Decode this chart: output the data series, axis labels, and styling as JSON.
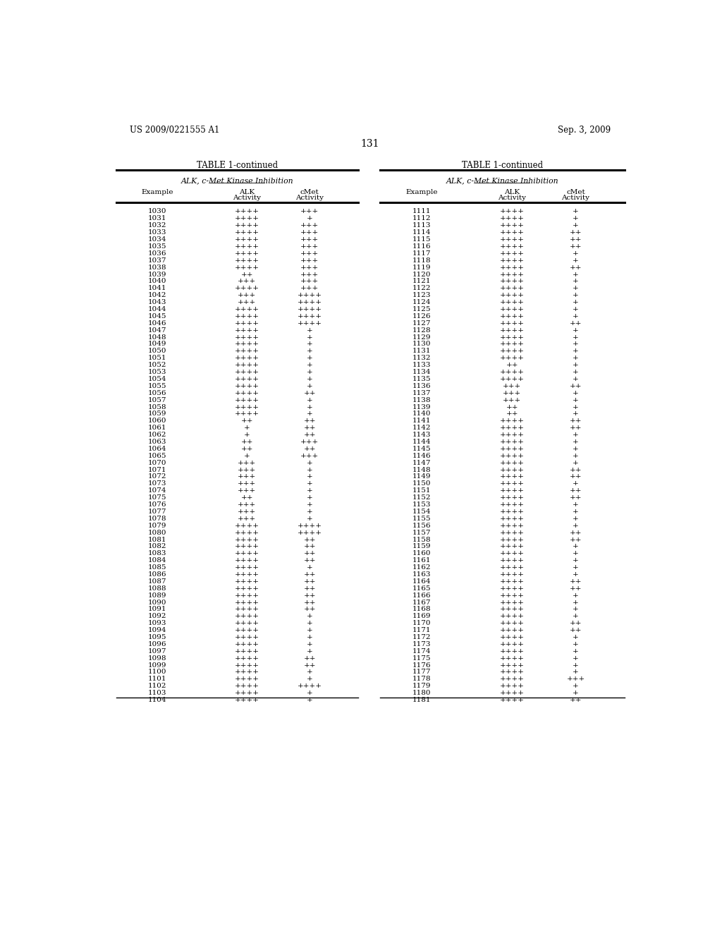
{
  "header_left": "US 2009/0221555 A1",
  "header_right": "Sep. 3, 2009",
  "page_number": "131",
  "table_title": "TABLE 1-continued",
  "subtitle": "ALK, c-Met Kinase Inhibition",
  "col_header_example": "Example",
  "col_header_alk1": "ALK",
  "col_header_alk2": "Activity",
  "col_header_cmet1": "cMet",
  "col_header_cmet2": "Activity",
  "left_data": [
    [
      "1030",
      "++++",
      "+++"
    ],
    [
      "1031",
      "++++",
      "+"
    ],
    [
      "1032",
      "++++",
      "+++"
    ],
    [
      "1033",
      "++++",
      "+++"
    ],
    [
      "1034",
      "++++",
      "+++"
    ],
    [
      "1035",
      "++++",
      "+++"
    ],
    [
      "1036",
      "++++",
      "+++"
    ],
    [
      "1037",
      "++++",
      "+++"
    ],
    [
      "1038",
      "++++",
      "+++"
    ],
    [
      "1039",
      "++",
      "+++"
    ],
    [
      "1040",
      "+++",
      "+++"
    ],
    [
      "1041",
      "++++",
      "+++"
    ],
    [
      "1042",
      "+++",
      "++++"
    ],
    [
      "1043",
      "+++",
      "++++"
    ],
    [
      "1044",
      "++++",
      "++++"
    ],
    [
      "1045",
      "++++",
      "++++"
    ],
    [
      "1046",
      "++++",
      "++++"
    ],
    [
      "1047",
      "++++",
      "+"
    ],
    [
      "1048",
      "++++",
      "+"
    ],
    [
      "1049",
      "++++",
      "+"
    ],
    [
      "1050",
      "++++",
      "+"
    ],
    [
      "1051",
      "++++",
      "+"
    ],
    [
      "1052",
      "++++",
      "+"
    ],
    [
      "1053",
      "++++",
      "+"
    ],
    [
      "1054",
      "++++",
      "+"
    ],
    [
      "1055",
      "++++",
      "+"
    ],
    [
      "1056",
      "++++",
      "++"
    ],
    [
      "1057",
      "++++",
      "+"
    ],
    [
      "1058",
      "++++",
      "+"
    ],
    [
      "1059",
      "++++",
      "+"
    ],
    [
      "1060",
      "++",
      "++"
    ],
    [
      "1061",
      "+",
      "++"
    ],
    [
      "1062",
      "+",
      "++"
    ],
    [
      "1063",
      "++",
      "+++"
    ],
    [
      "1064",
      "++",
      "++"
    ],
    [
      "1065",
      "+",
      "+++"
    ],
    [
      "1070",
      "+++",
      "+"
    ],
    [
      "1071",
      "+++",
      "+"
    ],
    [
      "1072",
      "+++",
      "+"
    ],
    [
      "1073",
      "+++",
      "+"
    ],
    [
      "1074",
      "+++",
      "+"
    ],
    [
      "1075",
      "++",
      "+"
    ],
    [
      "1076",
      "+++",
      "+"
    ],
    [
      "1077",
      "+++",
      "+"
    ],
    [
      "1078",
      "+++",
      "+"
    ],
    [
      "1079",
      "++++",
      "++++"
    ],
    [
      "1080",
      "++++",
      "++++"
    ],
    [
      "1081",
      "++++",
      "++"
    ],
    [
      "1082",
      "++++",
      "++"
    ],
    [
      "1083",
      "++++",
      "++"
    ],
    [
      "1084",
      "++++",
      "++"
    ],
    [
      "1085",
      "++++",
      "+"
    ],
    [
      "1086",
      "++++",
      "++"
    ],
    [
      "1087",
      "++++",
      "++"
    ],
    [
      "1088",
      "++++",
      "++"
    ],
    [
      "1089",
      "++++",
      "++"
    ],
    [
      "1090",
      "++++",
      "++"
    ],
    [
      "1091",
      "++++",
      "++"
    ],
    [
      "1092",
      "++++",
      "+"
    ],
    [
      "1093",
      "++++",
      "+"
    ],
    [
      "1094",
      "++++",
      "+"
    ],
    [
      "1095",
      "++++",
      "+"
    ],
    [
      "1096",
      "++++",
      "+"
    ],
    [
      "1097",
      "++++",
      "+"
    ],
    [
      "1098",
      "++++",
      "++"
    ],
    [
      "1099",
      "++++",
      "++"
    ],
    [
      "1100",
      "++++",
      "+"
    ],
    [
      "1101",
      "++++",
      "+"
    ],
    [
      "1102",
      "++++",
      "++++"
    ],
    [
      "1103",
      "++++",
      "+"
    ],
    [
      "1104",
      "++++",
      "+"
    ]
  ],
  "right_data": [
    [
      "1111",
      "++++",
      "+"
    ],
    [
      "1112",
      "++++",
      "+"
    ],
    [
      "1113",
      "++++",
      "+"
    ],
    [
      "1114",
      "++++",
      "++"
    ],
    [
      "1115",
      "++++",
      "++"
    ],
    [
      "1116",
      "++++",
      "++"
    ],
    [
      "1117",
      "++++",
      "+"
    ],
    [
      "1118",
      "++++",
      "+"
    ],
    [
      "1119",
      "++++",
      "++"
    ],
    [
      "1120",
      "++++",
      "+"
    ],
    [
      "1121",
      "++++",
      "+"
    ],
    [
      "1122",
      "++++",
      "+"
    ],
    [
      "1123",
      "++++",
      "+"
    ],
    [
      "1124",
      "++++",
      "+"
    ],
    [
      "1125",
      "++++",
      "+"
    ],
    [
      "1126",
      "++++",
      "+"
    ],
    [
      "1127",
      "++++",
      "++"
    ],
    [
      "1128",
      "++++",
      "+"
    ],
    [
      "1129",
      "++++",
      "+"
    ],
    [
      "1130",
      "++++",
      "+"
    ],
    [
      "1131",
      "++++",
      "+"
    ],
    [
      "1132",
      "++++",
      "+"
    ],
    [
      "1133",
      "++",
      "+"
    ],
    [
      "1134",
      "++++",
      "+"
    ],
    [
      "1135",
      "++++",
      "+"
    ],
    [
      "1136",
      "+++",
      "++"
    ],
    [
      "1137",
      "+++",
      "+"
    ],
    [
      "1138",
      "+++",
      "+"
    ],
    [
      "1139",
      "++",
      "+"
    ],
    [
      "1140",
      "++",
      "+"
    ],
    [
      "1141",
      "++++",
      "++"
    ],
    [
      "1142",
      "++++",
      "++"
    ],
    [
      "1143",
      "++++",
      "+"
    ],
    [
      "1144",
      "++++",
      "+"
    ],
    [
      "1145",
      "++++",
      "+"
    ],
    [
      "1146",
      "++++",
      "+"
    ],
    [
      "1147",
      "++++",
      "+"
    ],
    [
      "1148",
      "++++",
      "++"
    ],
    [
      "1149",
      "++++",
      "++"
    ],
    [
      "1150",
      "++++",
      "+"
    ],
    [
      "1151",
      "++++",
      "++"
    ],
    [
      "1152",
      "++++",
      "++"
    ],
    [
      "1153",
      "++++",
      "+"
    ],
    [
      "1154",
      "++++",
      "+"
    ],
    [
      "1155",
      "++++",
      "+"
    ],
    [
      "1156",
      "++++",
      "+"
    ],
    [
      "1157",
      "++++",
      "++"
    ],
    [
      "1158",
      "++++",
      "++"
    ],
    [
      "1159",
      "++++",
      "+"
    ],
    [
      "1160",
      "++++",
      "+"
    ],
    [
      "1161",
      "++++",
      "+"
    ],
    [
      "1162",
      "++++",
      "+"
    ],
    [
      "1163",
      "++++",
      "+"
    ],
    [
      "1164",
      "++++",
      "++"
    ],
    [
      "1165",
      "++++",
      "++"
    ],
    [
      "1166",
      "++++",
      "+"
    ],
    [
      "1167",
      "++++",
      "+"
    ],
    [
      "1168",
      "++++",
      "+"
    ],
    [
      "1169",
      "++++",
      "+"
    ],
    [
      "1170",
      "++++",
      "++"
    ],
    [
      "1171",
      "++++",
      "++"
    ],
    [
      "1172",
      "++++",
      "+"
    ],
    [
      "1173",
      "++++",
      "+"
    ],
    [
      "1174",
      "++++",
      "+"
    ],
    [
      "1175",
      "++++",
      "+"
    ],
    [
      "1176",
      "++++",
      "+"
    ],
    [
      "1177",
      "++++",
      "+"
    ],
    [
      "1178",
      "++++",
      "+++"
    ],
    [
      "1179",
      "++++",
      "+"
    ],
    [
      "1180",
      "++++",
      "+"
    ],
    [
      "1181",
      "++++",
      "++"
    ]
  ],
  "bg_color": "#ffffff",
  "text_color": "#000000",
  "font_size": 7.5,
  "header_font_size": 8.5,
  "title_font_size": 9.0
}
